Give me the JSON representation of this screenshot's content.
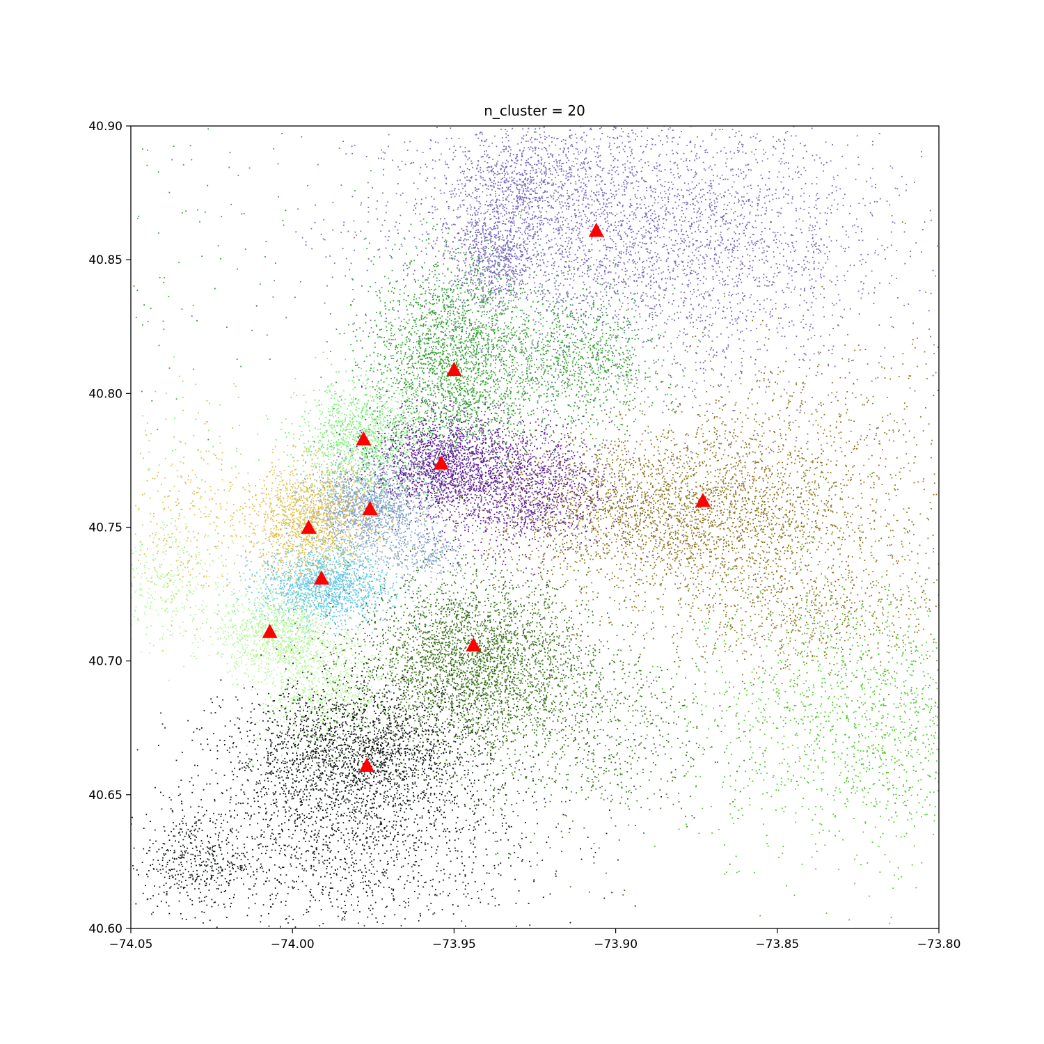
{
  "chart_data": {
    "type": "scatter",
    "title": "n_cluster = 20",
    "xlabel": "",
    "ylabel": "",
    "xlim": [
      -74.05,
      -73.8
    ],
    "ylim": [
      40.6,
      40.9
    ],
    "grid": false,
    "x_ticks": [
      -74.05,
      -74.0,
      -73.95,
      -73.9,
      -73.85,
      -73.8
    ],
    "x_tick_labels": [
      "−74.05",
      "−74.00",
      "−73.95",
      "−73.90",
      "−73.85",
      "−73.80"
    ],
    "y_ticks": [
      40.6,
      40.65,
      40.7,
      40.75,
      40.8,
      40.85,
      40.9
    ],
    "y_tick_labels": [
      "40.60",
      "40.65",
      "40.70",
      "40.75",
      "40.80",
      "40.85",
      "40.90"
    ],
    "centroid_marker": {
      "shape": "triangle",
      "color": "#ff0000"
    },
    "centroids": [
      {
        "x": -73.906,
        "y": 40.861
      },
      {
        "x": -73.95,
        "y": 40.809
      },
      {
        "x": -73.978,
        "y": 40.783
      },
      {
        "x": -73.954,
        "y": 40.774
      },
      {
        "x": -73.976,
        "y": 40.757
      },
      {
        "x": -73.995,
        "y": 40.75
      },
      {
        "x": -73.873,
        "y": 40.76
      },
      {
        "x": -73.991,
        "y": 40.731
      },
      {
        "x": -74.007,
        "y": 40.711
      },
      {
        "x": -73.944,
        "y": 40.706
      },
      {
        "x": -73.977,
        "y": 40.661
      }
    ],
    "clusters": [
      {
        "color": "#7a68bf",
        "blobs": [
          [
            -73.905,
            40.862,
            0.038,
            0.022,
            2600
          ],
          [
            -73.875,
            40.852,
            0.032,
            0.032,
            1500
          ],
          [
            -73.93,
            40.878,
            0.012,
            0.01,
            700
          ],
          [
            -73.937,
            40.85,
            0.007,
            0.008,
            600
          ]
        ]
      },
      {
        "color": "#33a332",
        "blobs": [
          [
            -73.95,
            40.812,
            0.013,
            0.02,
            2600
          ],
          [
            -73.91,
            40.812,
            0.012,
            0.013,
            900
          ],
          [
            -74.04,
            40.85,
            0.022,
            0.03,
            110
          ]
        ]
      },
      {
        "color": "#78f070",
        "blobs": [
          [
            -73.978,
            40.782,
            0.01,
            0.011,
            1200
          ],
          [
            -74.025,
            40.77,
            0.025,
            0.02,
            60
          ]
        ]
      },
      {
        "color": "#6120a0",
        "blobs": [
          [
            -73.955,
            40.774,
            0.01,
            0.009,
            1400
          ],
          [
            -73.93,
            40.765,
            0.014,
            0.012,
            1700
          ]
        ]
      },
      {
        "color": "#82a2cd",
        "blobs": [
          [
            -73.977,
            40.757,
            0.009,
            0.008,
            1500
          ],
          [
            -73.958,
            40.74,
            0.006,
            0.005,
            250
          ]
        ]
      },
      {
        "color": "#dfc04a",
        "blobs": [
          [
            -73.995,
            40.752,
            0.01,
            0.011,
            1500
          ],
          [
            -74.033,
            40.755,
            0.008,
            0.02,
            300
          ]
        ]
      },
      {
        "color": "#8b7420",
        "blobs": [
          [
            -73.885,
            40.755,
            0.027,
            0.015,
            2700
          ],
          [
            -73.845,
            40.765,
            0.028,
            0.03,
            1300
          ],
          [
            -73.842,
            40.718,
            0.022,
            0.011,
            600
          ]
        ]
      },
      {
        "color": "#62c8e8",
        "blobs": [
          [
            -73.99,
            40.728,
            0.01,
            0.007,
            1500
          ]
        ]
      },
      {
        "color": "#aff891",
        "blobs": [
          [
            -74.005,
            40.71,
            0.009,
            0.008,
            1000
          ],
          [
            -73.99,
            40.688,
            0.01,
            0.01,
            700
          ],
          [
            -74.04,
            40.728,
            0.009,
            0.012,
            300
          ]
        ]
      },
      {
        "color": "#3a741c",
        "blobs": [
          [
            -73.945,
            40.7,
            0.018,
            0.016,
            3200
          ],
          [
            -73.91,
            40.675,
            0.02,
            0.02,
            900
          ]
        ]
      },
      {
        "color": "#111714",
        "blobs": [
          [
            -73.98,
            40.665,
            0.02,
            0.013,
            2400
          ],
          [
            -73.985,
            40.63,
            0.03,
            0.016,
            1400
          ],
          [
            -74.03,
            40.625,
            0.008,
            0.009,
            350
          ]
        ]
      },
      {
        "color": "#4acb22",
        "blobs": [
          [
            -73.83,
            40.68,
            0.024,
            0.025,
            1300
          ],
          [
            -73.81,
            40.67,
            0.008,
            0.03,
            200
          ]
        ]
      }
    ]
  }
}
